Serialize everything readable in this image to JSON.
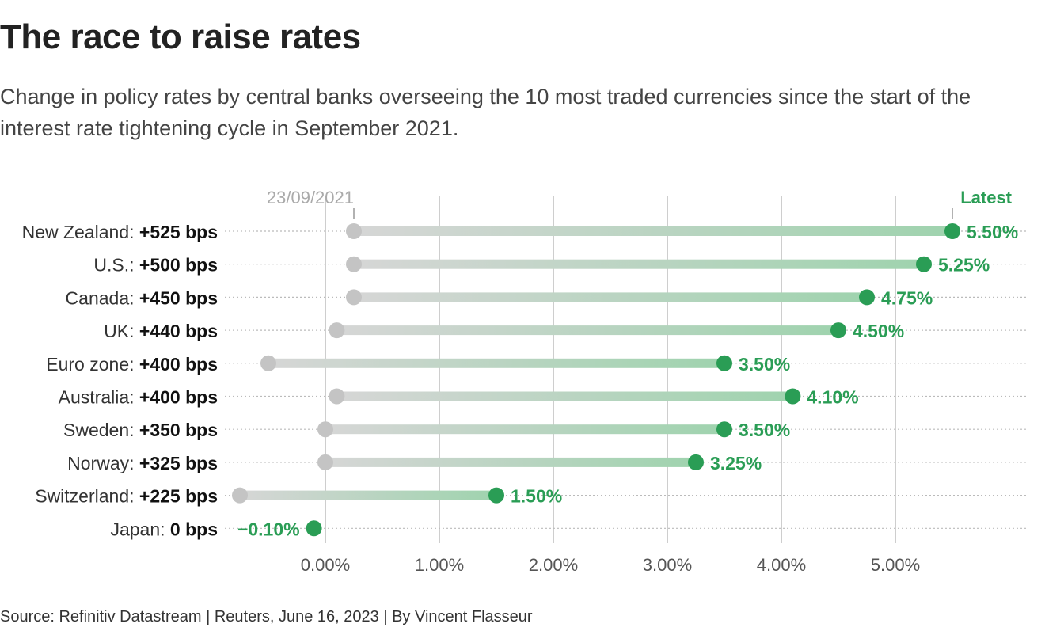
{
  "chart_data": {
    "type": "dot-range",
    "title": "The race to raise rates",
    "subtitle": "Change in policy rates by central banks overseeing the 10 most traded currencies since the start of the interest rate tightening cycle in September 2021.",
    "source": "Source: Refinitiv Datastream | Reuters, June 16, 2023 | By Vincent Flasseur",
    "start_label": "23/09/2021",
    "end_label": "Latest",
    "xlim": [
      -0.9,
      6.0
    ],
    "x_ticks": [
      0,
      1,
      2,
      3,
      4,
      5
    ],
    "x_tick_labels": [
      "0.00%",
      "1.00%",
      "2.00%",
      "3.00%",
      "4.00%",
      "5.00%"
    ],
    "grid": true,
    "colors": {
      "start": "#c4c4c4",
      "latest": "#2a9d55",
      "bar": "#9fd3ae",
      "grid": "#bdbdbd"
    },
    "rows": [
      {
        "country": "New Zealand:",
        "change": "+525 bps",
        "start": 0.25,
        "latest": 5.5,
        "latest_label": "5.50%"
      },
      {
        "country": "U.S.:",
        "change": "+500 bps",
        "start": 0.25,
        "latest": 5.25,
        "latest_label": "5.25%"
      },
      {
        "country": "Canada:",
        "change": "+450 bps",
        "start": 0.25,
        "latest": 4.75,
        "latest_label": "4.75%"
      },
      {
        "country": "UK:",
        "change": "+440 bps",
        "start": 0.1,
        "latest": 4.5,
        "latest_label": "4.50%"
      },
      {
        "country": "Euro zone:",
        "change": "+400 bps",
        "start": -0.5,
        "latest": 3.5,
        "latest_label": "3.50%"
      },
      {
        "country": "Australia:",
        "change": "+400 bps",
        "start": 0.1,
        "latest": 4.1,
        "latest_label": "4.10%"
      },
      {
        "country": "Sweden:",
        "change": "+350 bps",
        "start": 0.0,
        "latest": 3.5,
        "latest_label": "3.50%"
      },
      {
        "country": "Norway:",
        "change": "+325 bps",
        "start": 0.0,
        "latest": 3.25,
        "latest_label": "3.25%"
      },
      {
        "country": "Switzerland:",
        "change": "+225 bps",
        "start": -0.75,
        "latest": 1.5,
        "latest_label": "1.50%"
      },
      {
        "country": "Japan:",
        "change": "0 bps",
        "start": -0.1,
        "latest": -0.1,
        "latest_label": "−0.10%"
      }
    ]
  }
}
